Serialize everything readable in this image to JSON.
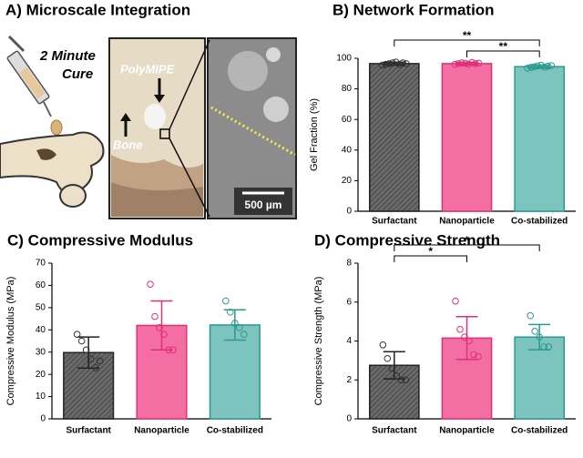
{
  "panel_a": {
    "title": "A) Microscale Integration",
    "cure_label": [
      "2 Minute",
      "Cure"
    ],
    "material_label": "PolyMIPE",
    "bone_label": "Bone",
    "scale_bar": "500 µm"
  },
  "chart_data": [
    {
      "type": "bar",
      "title": "B) Network Formation",
      "ylabel": "Gel Fraction (%)",
      "categories": [
        "Surfactant",
        "Nanoparticle",
        "Co-stabilized"
      ],
      "values": [
        96.5,
        96.5,
        94.5
      ],
      "errors": [
        1.0,
        0.8,
        1.0
      ],
      "points": [
        [
          95.5,
          96,
          96.5,
          97,
          97.5,
          96,
          97,
          96.5
        ],
        [
          96,
          96.5,
          97,
          96.8,
          96.2,
          97.2,
          96.5,
          96.8
        ],
        [
          93.5,
          94,
          94.5,
          95,
          95.5,
          94.2,
          94.8,
          95.2
        ]
      ],
      "colors": [
        "#5a5a5a",
        "#f26ea3",
        "#7cc4bd"
      ],
      "edge_colors": [
        "#222222",
        "#e0307a",
        "#2a9a90"
      ],
      "hatched": [
        true,
        false,
        false
      ],
      "ylim": [
        0,
        100
      ],
      "yticks": [
        0,
        20,
        40,
        60,
        80,
        100
      ],
      "significance": [
        {
          "between": [
            1,
            2
          ],
          "label": "**"
        },
        {
          "between": [
            0,
            2
          ],
          "label": "**"
        }
      ]
    },
    {
      "type": "bar",
      "title": "C) Compressive Modulus",
      "ylabel": "Compressive Modulus (MPa)",
      "categories": [
        "Surfactant",
        "Nanoparticle",
        "Co-stabilized"
      ],
      "values": [
        29.8,
        42,
        42.2
      ],
      "errors": [
        7,
        11,
        6.8
      ],
      "points": [
        [
          38,
          35,
          31,
          27,
          23,
          26
        ],
        [
          60.5,
          46,
          41,
          38,
          31,
          31
        ],
        [
          53,
          48,
          43,
          41,
          38
        ]
      ],
      "colors": [
        "#5a5a5a",
        "#f26ea3",
        "#7cc4bd"
      ],
      "edge_colors": [
        "#222222",
        "#e0307a",
        "#2a9a90"
      ],
      "hatched": [
        true,
        false,
        false
      ],
      "ylim": [
        0,
        70
      ],
      "yticks": [
        0,
        10,
        20,
        30,
        40,
        50,
        60,
        70
      ],
      "significance": []
    },
    {
      "type": "bar",
      "title": "D) Compressive Strength",
      "ylabel": "Compressive Strength (MPa)",
      "categories": [
        "Surfactant",
        "Nanoparticle",
        "Co-stabilized"
      ],
      "values": [
        2.75,
        4.15,
        4.2
      ],
      "errors": [
        0.7,
        1.1,
        0.65
      ],
      "points": [
        [
          3.8,
          3.1,
          2.6,
          2.2,
          2.0,
          2.0
        ],
        [
          6.05,
          4.6,
          4.2,
          4.0,
          3.3,
          3.2
        ],
        [
          5.3,
          4.5,
          4.2,
          3.7,
          3.7
        ]
      ],
      "colors": [
        "#5a5a5a",
        "#f26ea3",
        "#7cc4bd"
      ],
      "edge_colors": [
        "#222222",
        "#e0307a",
        "#2a9a90"
      ],
      "hatched": [
        true,
        false,
        false
      ],
      "ylim": [
        0,
        8
      ],
      "yticks": [
        0,
        2,
        4,
        6,
        8
      ],
      "significance": [
        {
          "between": [
            0,
            1
          ],
          "label": "*"
        },
        {
          "between": [
            0,
            2
          ],
          "label": "*"
        }
      ]
    }
  ]
}
